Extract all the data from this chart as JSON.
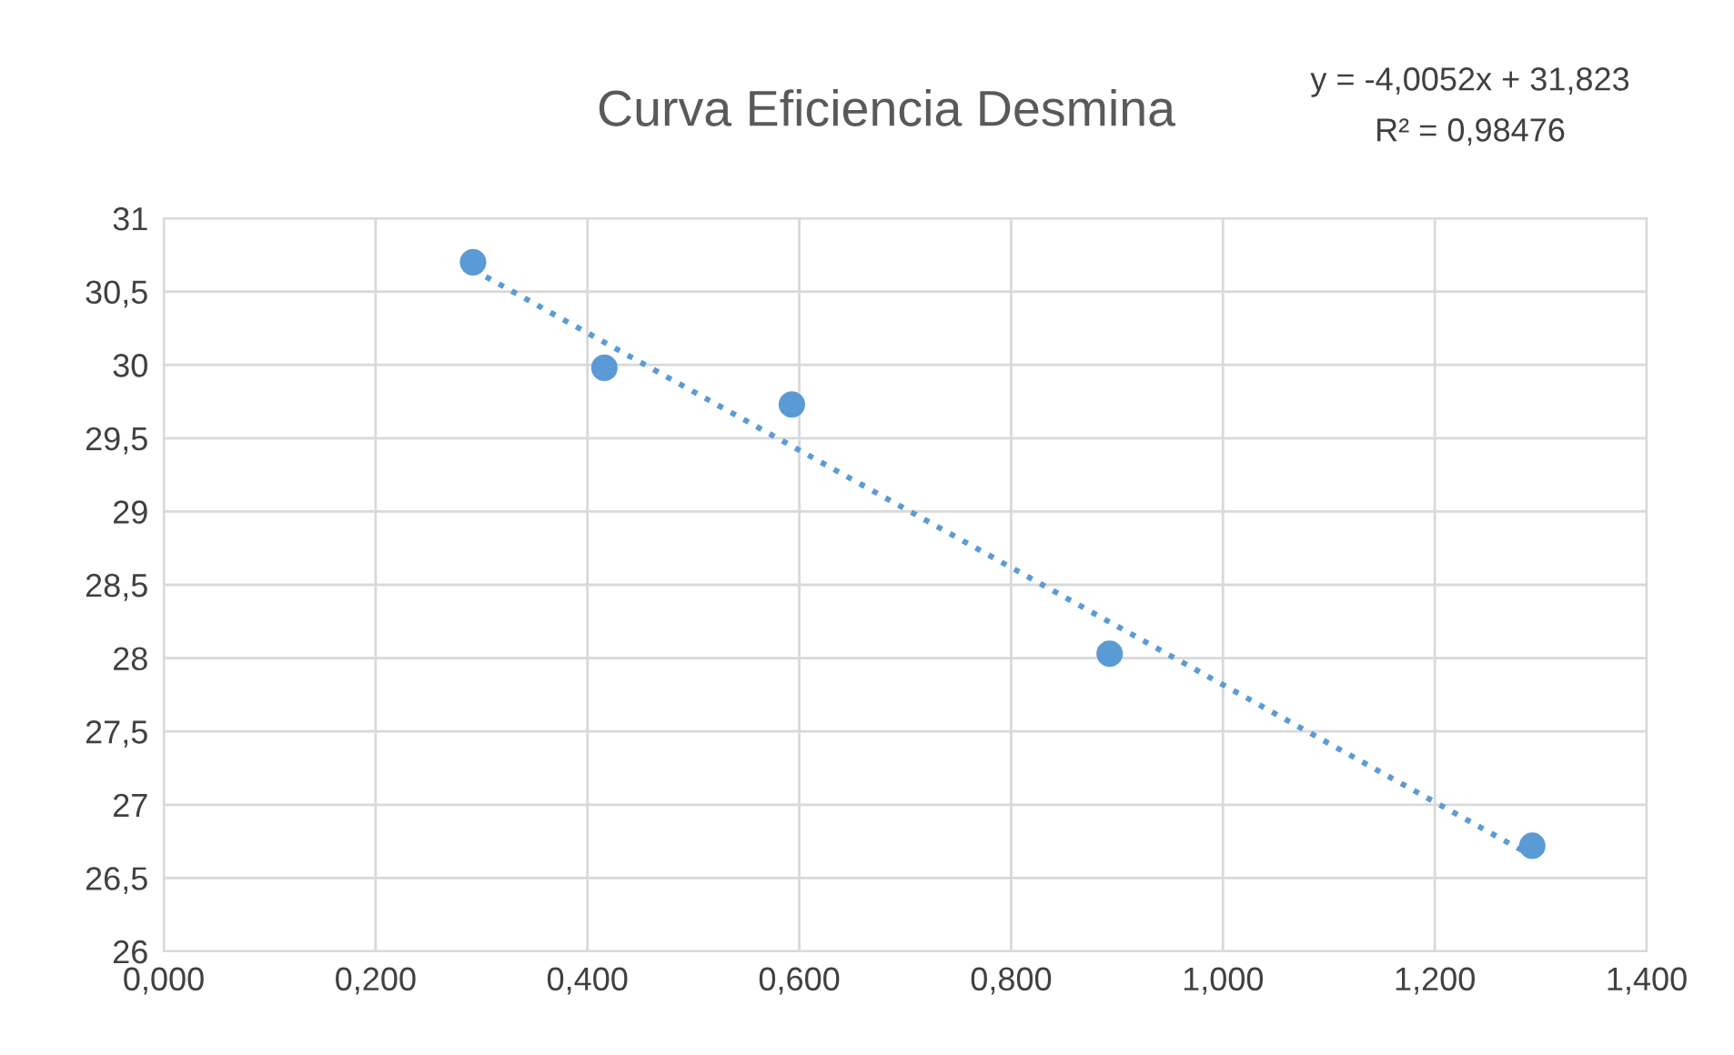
{
  "chart_data": {
    "type": "scatter",
    "title": "Curva Eficiencia Desmina",
    "annotations": [
      "y = -4,0052x + 31,823",
      "R² = 0,98476"
    ],
    "series": [
      {
        "color": "#5b9bd5",
        "x": [
          0.292,
          0.416,
          0.593,
          0.893,
          1.292
        ],
        "values": [
          30.7,
          29.98,
          29.73,
          28.03,
          26.72
        ],
        "marker": "circle"
      },
      {
        "type": "line",
        "color": "#5b9bd5",
        "x": [
          0.292,
          1.292
        ],
        "values": [
          30.65,
          26.65
        ],
        "line_style": "dotted",
        "marker": "none"
      }
    ],
    "xlim": [
      0,
      1.4
    ],
    "xticks": [
      {
        "value": 0,
        "label": "0,000"
      },
      {
        "value": 0.2,
        "label": "0,200"
      },
      {
        "value": 0.4,
        "label": "0,400"
      },
      {
        "value": 0.6,
        "label": "0,600"
      },
      {
        "value": 0.8,
        "label": "0,800"
      },
      {
        "value": 1.0,
        "label": "1,000"
      },
      {
        "value": 1.2,
        "label": "1,200"
      },
      {
        "value": 1.4,
        "label": "1,400"
      }
    ],
    "ylim": [
      26,
      31
    ],
    "yticks": [
      26,
      {
        "value": 26.5,
        "label": "26,5"
      },
      27,
      {
        "value": 27.5,
        "label": "27,5"
      },
      28,
      {
        "value": 28.5,
        "label": "28,5"
      },
      29,
      {
        "value": 29.5,
        "label": "29,5"
      },
      30,
      {
        "value": 30.5,
        "label": "30,5"
      },
      31
    ],
    "grid": true,
    "legend": false
  }
}
